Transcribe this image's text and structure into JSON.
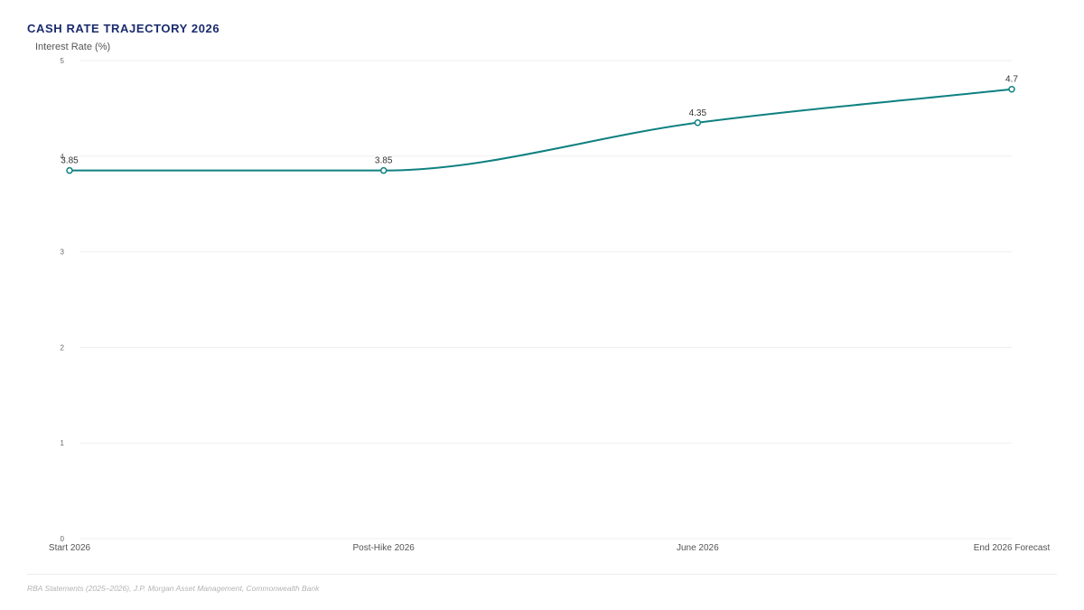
{
  "chart_data": {
    "type": "line",
    "title": "CASH RATE TRAJECTORY 2026",
    "ylabel": "Interest Rate (%)",
    "xlabel": "",
    "categories": [
      "Start 2026",
      "Post-Hike 2026",
      "June 2026",
      "End 2026 Forecast"
    ],
    "series": [
      {
        "values": [
          3.85,
          3.85,
          4.35,
          4.7
        ]
      }
    ],
    "data_labels": [
      "3.85",
      "3.85",
      "4.35",
      "4.7"
    ],
    "ylim": [
      0,
      5
    ],
    "yticks": [
      0,
      1,
      2,
      3,
      4,
      5
    ],
    "grid": true,
    "line_color": "#0f8080",
    "curve": "smooth"
  },
  "source": "RBA Statements (2025–2026), J.P. Morgan Asset Management, Commonwealth Bank"
}
